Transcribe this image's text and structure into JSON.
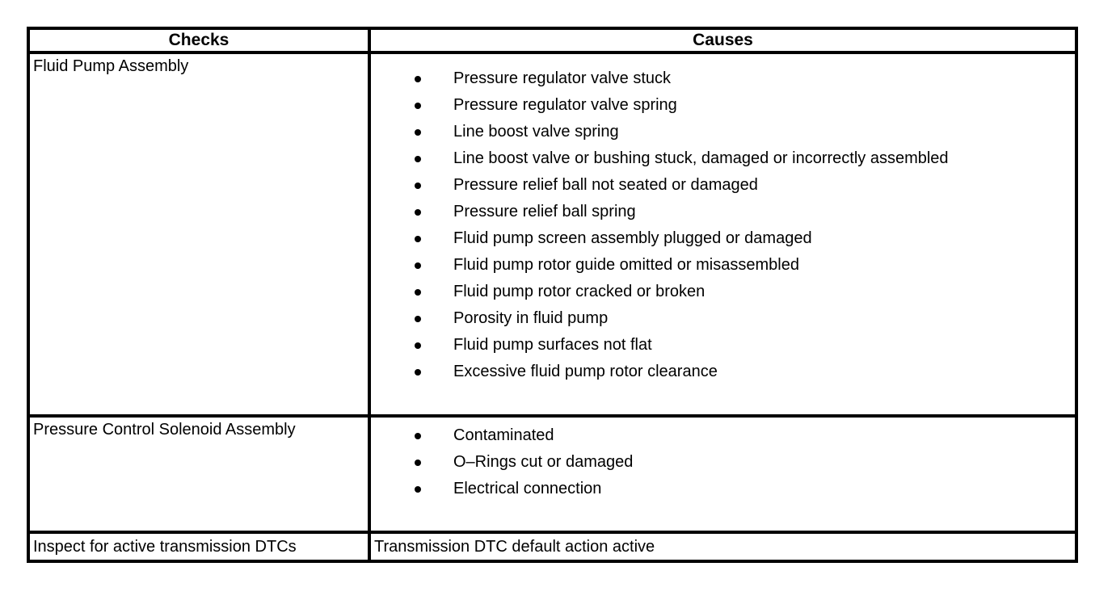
{
  "colors": {
    "background": "#ffffff",
    "text": "#000000",
    "border": "#000000"
  },
  "table": {
    "columns": [
      {
        "label": "Checks"
      },
      {
        "label": "Causes"
      }
    ],
    "rows": [
      {
        "check": "Fluid Pump Assembly",
        "causes_style": "bullets",
        "causes": [
          "Pressure regulator valve stuck",
          "Pressure regulator valve spring",
          "Line boost valve spring",
          "Line boost valve or bushing stuck, damaged or incorrectly assembled",
          "Pressure relief ball not seated or damaged",
          "Pressure relief ball spring",
          "Fluid pump screen assembly plugged or damaged",
          "Fluid pump rotor guide omitted or misassembled",
          "Fluid pump rotor cracked or broken",
          "Porosity in fluid pump",
          "Fluid pump surfaces not flat",
          "Excessive fluid pump rotor clearance"
        ]
      },
      {
        "check": "Pressure Control Solenoid Assembly",
        "causes_style": "bullets",
        "causes": [
          "Contaminated",
          "O–Rings cut or damaged",
          "Electrical connection"
        ]
      },
      {
        "check": "Inspect for active transmission DTCs",
        "causes_style": "plain",
        "causes": [
          "Transmission DTC default action active"
        ]
      }
    ]
  }
}
